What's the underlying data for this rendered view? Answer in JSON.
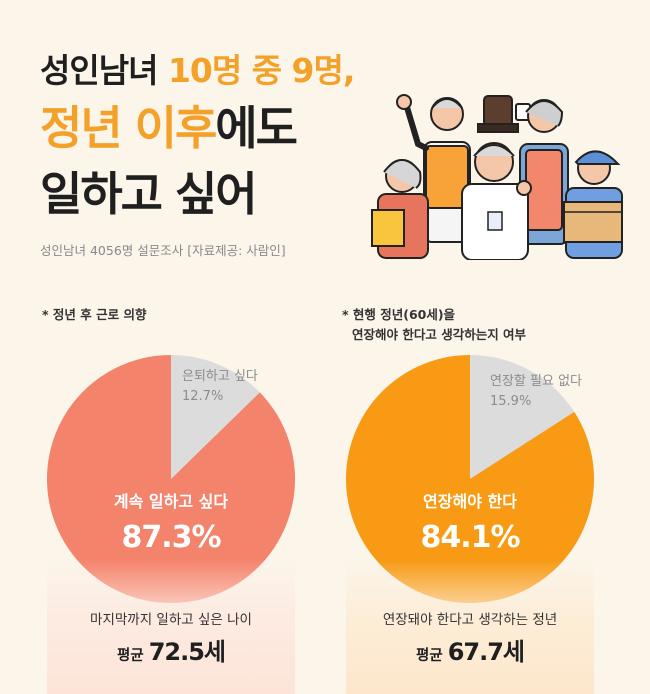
{
  "headline": {
    "line1_a": "성인남녀 ",
    "line1_b": "10명 중 9명,",
    "line2_a": "정년 이후",
    "line2_b": "에도",
    "line3": "일하고 싶어"
  },
  "source": "성인남녀 4056명 설문조사  [자료제공: 사람인]",
  "colors": {
    "accent_orange": "#f4a12a",
    "accent_coral": "#ef5c31",
    "pie_left": "#f4836c",
    "pie_right": "#f89a14",
    "pie_rest": "#dcdcdc"
  },
  "chart_data": [
    {
      "type": "pie",
      "title": "* 정년 후 근로 의향",
      "slices": [
        {
          "label": "계속 일하고 싶다",
          "value": 87.3,
          "value_text": "87.3%",
          "color": "#f4836c"
        },
        {
          "label": "은퇴하고 싶다",
          "value": 12.7,
          "value_text": "12.7%",
          "color": "#dcdcdc"
        }
      ],
      "footer_question": "마지막까지 일하고 싶은 나이",
      "footer_prefix": "평균 ",
      "footer_value": "72.5세"
    },
    {
      "type": "pie",
      "title_line1": "* 현행 정년(60세)을",
      "title_line2": "연장해야 한다고 생각하는지 여부",
      "slices": [
        {
          "label": "연장해야 한다",
          "value": 84.1,
          "value_text": "84.1%",
          "color": "#f89a14"
        },
        {
          "label": "연장할 필요 없다",
          "value": 15.9,
          "value_text": "15.9%",
          "color": "#dcdcdc"
        }
      ],
      "footer_question": "연장돼야 한다고 생각하는 정년",
      "footer_prefix": "평균 ",
      "footer_value": "67.7세"
    }
  ]
}
